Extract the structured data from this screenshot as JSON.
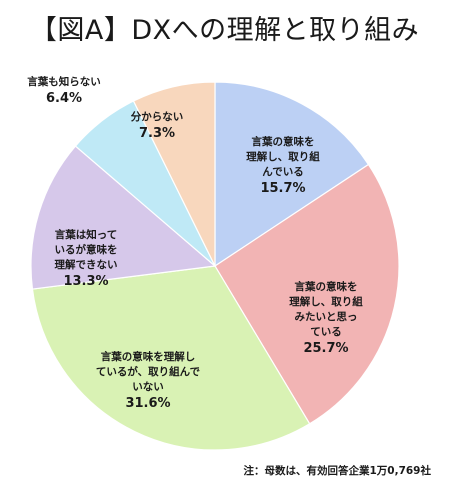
{
  "chart_data": {
    "type": "pie",
    "title": "【図A】DXへの理解と取り組み",
    "slices": [
      {
        "label": "言葉の意味を理解し、取り組んでいる",
        "value": 15.7,
        "value_label": "15.7%",
        "color": "#bcd0f4",
        "lines": [
          "言葉の意味を",
          "理解し、取り組",
          "んでいる"
        ]
      },
      {
        "label": "言葉の意味を理解し、取り組みたいと思っている",
        "value": 25.7,
        "value_label": "25.7%",
        "color": "#f2b4b4",
        "lines": [
          "言葉の意味を",
          "理解し、取り組",
          "みたいと思っ",
          "ている"
        ]
      },
      {
        "label": "言葉の意味を理解しているが、取り組んでいない",
        "value": 31.6,
        "value_label": "31.6%",
        "color": "#d9f2b4",
        "lines": [
          "言葉の意味を理解し",
          "ているが、取り組んで",
          "いない"
        ]
      },
      {
        "label": "言葉は知っているが意味を理解できない",
        "value": 13.3,
        "value_label": "13.3%",
        "color": "#d6c8ea",
        "lines": [
          "言葉は知って",
          "いるが意味を",
          "理解できない"
        ]
      },
      {
        "label": "言葉も知らない",
        "value": 6.4,
        "value_label": "6.4%",
        "color": "#bfe9f6",
        "lines": [
          "言葉も知らない"
        ]
      },
      {
        "label": "分からない",
        "value": 7.3,
        "value_label": "7.3%",
        "color": "#f8d7bd",
        "lines": [
          "分からない"
        ]
      }
    ],
    "start_angle_deg": 0,
    "direction": "clockwise",
    "legend": "none"
  },
  "footnote": "注：母数は、有効回答企業1万0,769社"
}
